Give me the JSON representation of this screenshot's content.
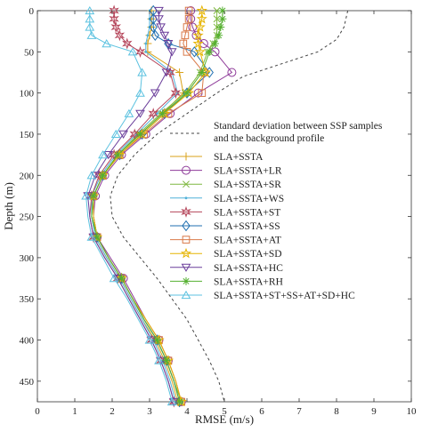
{
  "chart_data": {
    "type": "line",
    "title": "",
    "xlabel": "RMSE (m/s)",
    "ylabel": "Depth (m)",
    "xlim": [
      0,
      10
    ],
    "ylim": [
      475,
      0
    ],
    "xticks": [
      0,
      1,
      2,
      3,
      4,
      5,
      6,
      7,
      8,
      9,
      10
    ],
    "yticks": [
      0,
      50,
      100,
      150,
      200,
      250,
      300,
      350,
      400,
      450
    ],
    "grid": false,
    "legend_position": "right",
    "reference": {
      "name": "Standard deviation between SSP samples and the background profile",
      "name_lines": [
        "Standard deviation between SSP samples",
        "and the background profile"
      ],
      "style": "dashed",
      "color": "#444444",
      "points": [
        [
          8.3,
          0
        ],
        [
          8.25,
          10
        ],
        [
          8.2,
          20
        ],
        [
          8.0,
          35
        ],
        [
          7.5,
          50
        ],
        [
          6.5,
          65
        ],
        [
          5.5,
          80
        ],
        [
          4.8,
          100
        ],
        [
          4.0,
          125
        ],
        [
          3.2,
          150
        ],
        [
          2.6,
          175
        ],
        [
          2.15,
          200
        ],
        [
          1.95,
          225
        ],
        [
          2.0,
          250
        ],
        [
          2.3,
          275
        ],
        [
          2.75,
          300
        ],
        [
          3.2,
          325
        ],
        [
          3.6,
          350
        ],
        [
          4.0,
          375
        ],
        [
          4.3,
          400
        ],
        [
          4.6,
          425
        ],
        [
          4.85,
          450
        ],
        [
          5.0,
          475
        ]
      ]
    },
    "y": [
      0,
      10,
      20,
      30,
      40,
      50,
      75,
      100,
      125,
      150,
      175,
      200,
      225,
      250,
      275,
      300,
      325,
      350,
      375,
      400,
      425,
      450,
      475
    ],
    "series": [
      {
        "name": "SLA+SSTA",
        "color": "#d9a21a",
        "marker": "plus",
        "x": [
          3.05,
          3.05,
          3.05,
          3.0,
          2.95,
          2.95,
          3.8,
          3.9,
          3.35,
          2.75,
          2.15,
          1.75,
          1.5,
          1.45,
          1.55,
          1.85,
          2.2,
          2.5,
          2.8,
          3.15,
          3.4,
          3.6,
          3.75
        ]
      },
      {
        "name": "SLA+SSTA+LR",
        "color": "#8e3a99",
        "marker": "circle",
        "x": [
          4.1,
          4.1,
          4.15,
          4.25,
          4.45,
          4.75,
          5.2,
          4.3,
          3.55,
          2.9,
          2.25,
          1.8,
          1.55,
          1.5,
          1.6,
          1.95,
          2.3,
          2.6,
          2.9,
          3.25,
          3.5,
          3.7,
          3.85
        ]
      },
      {
        "name": "SLA+SSTA+SR",
        "color": "#7fb840",
        "marker": "x",
        "x": [
          4.8,
          4.8,
          4.8,
          4.8,
          4.7,
          4.55,
          4.35,
          3.95,
          3.3,
          2.7,
          2.15,
          1.75,
          1.5,
          1.45,
          1.6,
          1.9,
          2.25,
          2.55,
          2.85,
          3.2,
          3.45,
          3.65,
          3.85
        ]
      },
      {
        "name": "SLA+SSTA+WS",
        "color": "#4fb0d8",
        "marker": "dot",
        "x": [
          3.0,
          3.0,
          3.0,
          2.95,
          2.9,
          2.9,
          3.6,
          3.75,
          3.2,
          2.65,
          2.1,
          1.7,
          1.45,
          1.45,
          1.55,
          1.85,
          2.2,
          2.5,
          2.8,
          3.1,
          3.35,
          3.55,
          3.7
        ]
      },
      {
        "name": "SLA+SSTA+ST",
        "color": "#b5455a",
        "marker": "star",
        "x": [
          2.05,
          2.05,
          2.1,
          2.2,
          2.4,
          2.75,
          3.55,
          3.7,
          3.1,
          2.6,
          2.05,
          1.65,
          1.45,
          1.4,
          1.5,
          1.8,
          2.15,
          2.45,
          2.75,
          3.05,
          3.3,
          3.5,
          3.65
        ]
      },
      {
        "name": "SLA+SSTA+SS",
        "color": "#1f6fb0",
        "marker": "diamond",
        "x": [
          3.1,
          3.1,
          3.1,
          3.15,
          3.5,
          4.2,
          4.6,
          4.0,
          3.4,
          2.8,
          2.2,
          1.75,
          1.5,
          1.5,
          1.6,
          1.9,
          2.25,
          2.55,
          2.85,
          3.2,
          3.45,
          3.65,
          3.8
        ]
      },
      {
        "name": "SLA+SSTA+AT",
        "color": "#d97a4a",
        "marker": "square",
        "x": [
          4.05,
          4.05,
          4.0,
          3.95,
          3.9,
          4.0,
          4.45,
          4.4,
          3.5,
          2.85,
          2.2,
          1.75,
          1.5,
          1.5,
          1.6,
          1.9,
          2.25,
          2.55,
          2.9,
          3.25,
          3.5,
          3.7,
          3.85
        ]
      },
      {
        "name": "SLA+SSTA+SD",
        "color": "#e6b400",
        "marker": "pentagram",
        "x": [
          4.4,
          4.4,
          4.35,
          4.3,
          4.3,
          4.35,
          4.5,
          4.05,
          3.4,
          2.8,
          2.2,
          1.75,
          1.5,
          1.5,
          1.6,
          1.9,
          2.25,
          2.55,
          2.9,
          3.25,
          3.5,
          3.7,
          3.85
        ]
      },
      {
        "name": "SLA+SSTA+HC",
        "color": "#6a3d9a",
        "marker": "triangle-down",
        "x": [
          3.25,
          3.25,
          3.3,
          3.4,
          3.5,
          3.6,
          3.45,
          3.15,
          2.75,
          2.3,
          1.9,
          1.55,
          1.35,
          1.4,
          1.5,
          1.8,
          2.15,
          2.45,
          2.75,
          3.05,
          3.3,
          3.5,
          3.65
        ]
      },
      {
        "name": "SLA+SSTA+RH",
        "color": "#55b030",
        "marker": "asterisk",
        "x": [
          4.95,
          4.95,
          4.9,
          4.85,
          4.75,
          4.6,
          4.4,
          4.0,
          3.35,
          2.75,
          2.15,
          1.75,
          1.5,
          1.45,
          1.6,
          1.9,
          2.25,
          2.55,
          2.85,
          3.2,
          3.45,
          3.65,
          3.8
        ]
      },
      {
        "name": "SLA+SSTA+ST+SS+AT+SD+HC",
        "color": "#5cc2e0",
        "marker": "triangle-up",
        "x": [
          1.4,
          1.4,
          1.4,
          1.45,
          1.85,
          2.55,
          2.8,
          2.75,
          2.45,
          2.1,
          1.75,
          1.45,
          1.3,
          1.35,
          1.45,
          1.75,
          2.05,
          2.4,
          2.7,
          3.0,
          3.25,
          3.45,
          3.6
        ]
      }
    ]
  }
}
